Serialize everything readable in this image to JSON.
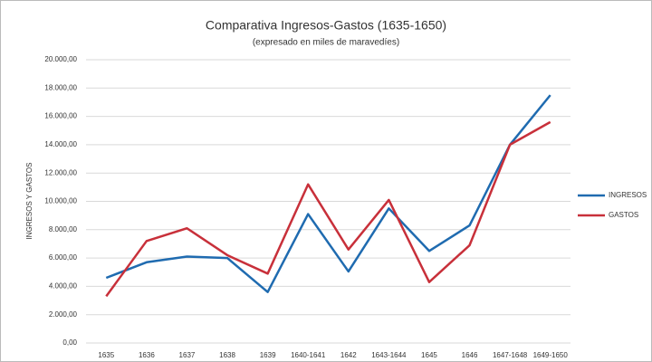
{
  "chart_data": {
    "type": "line",
    "title": "Comparativa Ingresos-Gastos (1635-1650)",
    "subtitle": "(expresado en miles de maravedíes)",
    "y_label": "INGRESOS Y GASTOS",
    "categories": [
      "1635",
      "1636",
      "1637",
      "1638",
      "1639",
      "1640-1641",
      "1642",
      "1643-1644",
      "1645",
      "1646",
      "1647-1648",
      "1649-1650"
    ],
    "series": [
      {
        "name": "INGRESOS",
        "color": "#1f6bb0",
        "values": [
          4600,
          5700,
          6100,
          6000,
          3600,
          9100,
          5050,
          9500,
          6500,
          8300,
          14000,
          17500
        ]
      },
      {
        "name": "GASTOS",
        "color": "#c8303a",
        "values": [
          3300,
          7200,
          8100,
          6200,
          4900,
          11200,
          6600,
          10100,
          4300,
          6900,
          14000,
          15600
        ]
      }
    ],
    "ylim": [
      0,
      20000
    ],
    "yticks": [
      {
        "value": 0,
        "label": "0,00"
      },
      {
        "value": 2000,
        "label": "2.000,00"
      },
      {
        "value": 4000,
        "label": "4.000,00"
      },
      {
        "value": 6000,
        "label": "6.000,00"
      },
      {
        "value": 8000,
        "label": "8.000,00"
      },
      {
        "value": 10000,
        "label": "10.000,00"
      },
      {
        "value": 12000,
        "label": "12.000,00"
      },
      {
        "value": 14000,
        "label": "14.000,00"
      },
      {
        "value": 16000,
        "label": "16.000,00"
      },
      {
        "value": 18000,
        "label": "18.000,00"
      },
      {
        "value": 20000,
        "label": "20.000,00"
      }
    ],
    "grid": true,
    "legend": "right"
  }
}
